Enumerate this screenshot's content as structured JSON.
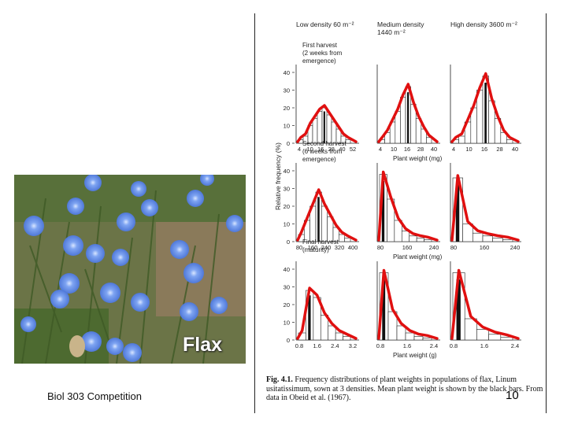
{
  "photo": {
    "label": "Flax"
  },
  "footer": {
    "course": "Biol 303 Competition",
    "page_number": "10"
  },
  "figure": {
    "headers": {
      "low": "Low density 60 m⁻²",
      "medium_line1": "Medium density",
      "medium_line2": "1440 m⁻²",
      "high": "High density 3600 m⁻²"
    },
    "y_axis_label": "Relative frequency (%)",
    "rows": [
      {
        "label_lines": [
          "First harvest",
          "(2 weeks from",
          "emergence)"
        ],
        "y_ticks": [
          "40",
          "30",
          "20",
          "10",
          "0"
        ],
        "x_ticks": [
          [
            "4",
            "10",
            "16",
            "28",
            "40",
            "52"
          ],
          [
            "4",
            "10",
            "16",
            "28",
            "40"
          ],
          [
            "4",
            "10",
            "16",
            "28",
            "40"
          ]
        ],
        "x_label": "Plant weight (mg)"
      },
      {
        "label_lines": [
          "Second harvest",
          "(6 weeks from",
          "emergence)"
        ],
        "y_ticks": [
          "40",
          "30",
          "20",
          "10",
          "0"
        ],
        "x_ticks": [
          [
            "80",
            "160",
            "240",
            "320",
            "400"
          ],
          [
            "80",
            "160",
            "240"
          ],
          [
            "80",
            "160",
            "240"
          ]
        ],
        "x_label": "Plant weight (mg)"
      },
      {
        "label_lines": [
          "Final harvest",
          "(maturity)"
        ],
        "y_ticks": [
          "40",
          "30",
          "20",
          "10",
          "0"
        ],
        "x_ticks": [
          [
            "0.8",
            "1.6",
            "2.4",
            "3.2"
          ],
          [
            "0.8",
            "1.6",
            "2.4"
          ],
          [
            "0.8",
            "1.6",
            "2.4"
          ]
        ],
        "x_label": "Plant weight (g)"
      }
    ],
    "caption": {
      "label": "Fig. 4.1.",
      "text": "Frequency distributions of plant weights in populations of flax, Linum usitatissimum, sown at 3 densities. Mean plant weight is shown by the black bars. From data in Obeid et al. (1967)."
    },
    "colors": {
      "overlay_curve": "#e01010"
    }
  }
}
